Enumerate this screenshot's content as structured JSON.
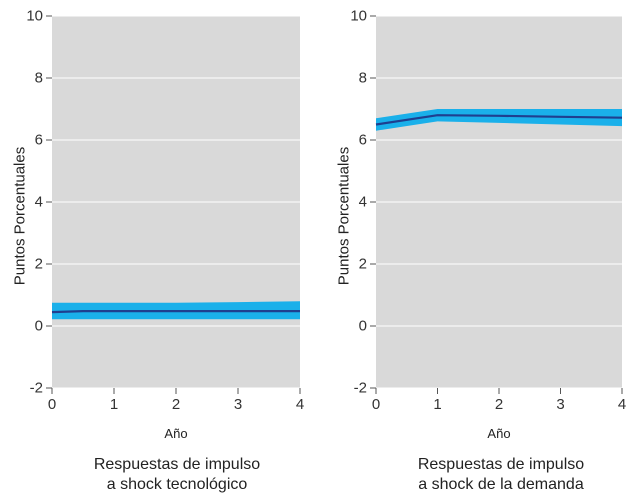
{
  "chart_data": [
    {
      "type": "line",
      "title": "",
      "xlabel": "Año",
      "ylabel": "Puntos Porcentuales",
      "caption": [
        "Respuestas de impulso",
        "a shock tecnológico"
      ],
      "xlim": [
        0,
        4
      ],
      "ylim": [
        -2,
        10
      ],
      "xticks": [
        "0",
        "1",
        "2",
        "3",
        "4"
      ],
      "yticks": [
        "-2",
        "0",
        "2",
        "4",
        "6",
        "8",
        "10"
      ],
      "grid": true,
      "series": [
        {
          "x": [
            0,
            0.5,
            1,
            2,
            3,
            4
          ],
          "values": [
            0.45,
            0.48,
            0.48,
            0.48,
            0.48,
            0.48
          ],
          "lower": [
            0.22,
            0.22,
            0.22,
            0.22,
            0.22,
            0.22
          ],
          "upper": [
            0.75,
            0.75,
            0.75,
            0.75,
            0.77,
            0.8
          ],
          "color": "#1f3f8f",
          "band_color": "#1ab0ea"
        }
      ]
    },
    {
      "type": "line",
      "title": "",
      "xlabel": "Año",
      "ylabel": "Puntos Porcentuales",
      "caption": [
        "Respuestas de impulso",
        "a shock de la demanda"
      ],
      "xlim": [
        0,
        4
      ],
      "ylim": [
        -2,
        10
      ],
      "xticks": [
        "0",
        "1",
        "2",
        "3",
        "4"
      ],
      "yticks": [
        "-2",
        "0",
        "2",
        "4",
        "6",
        "8",
        "10"
      ],
      "grid": true,
      "series": [
        {
          "x": [
            0,
            1,
            2,
            3,
            4
          ],
          "values": [
            6.5,
            6.8,
            6.78,
            6.75,
            6.72
          ],
          "lower": [
            6.3,
            6.6,
            6.55,
            6.5,
            6.45
          ],
          "upper": [
            6.7,
            7.0,
            7.0,
            7.0,
            7.0
          ],
          "color": "#1f3f8f",
          "band_color": "#1ab0ea"
        }
      ]
    }
  ]
}
